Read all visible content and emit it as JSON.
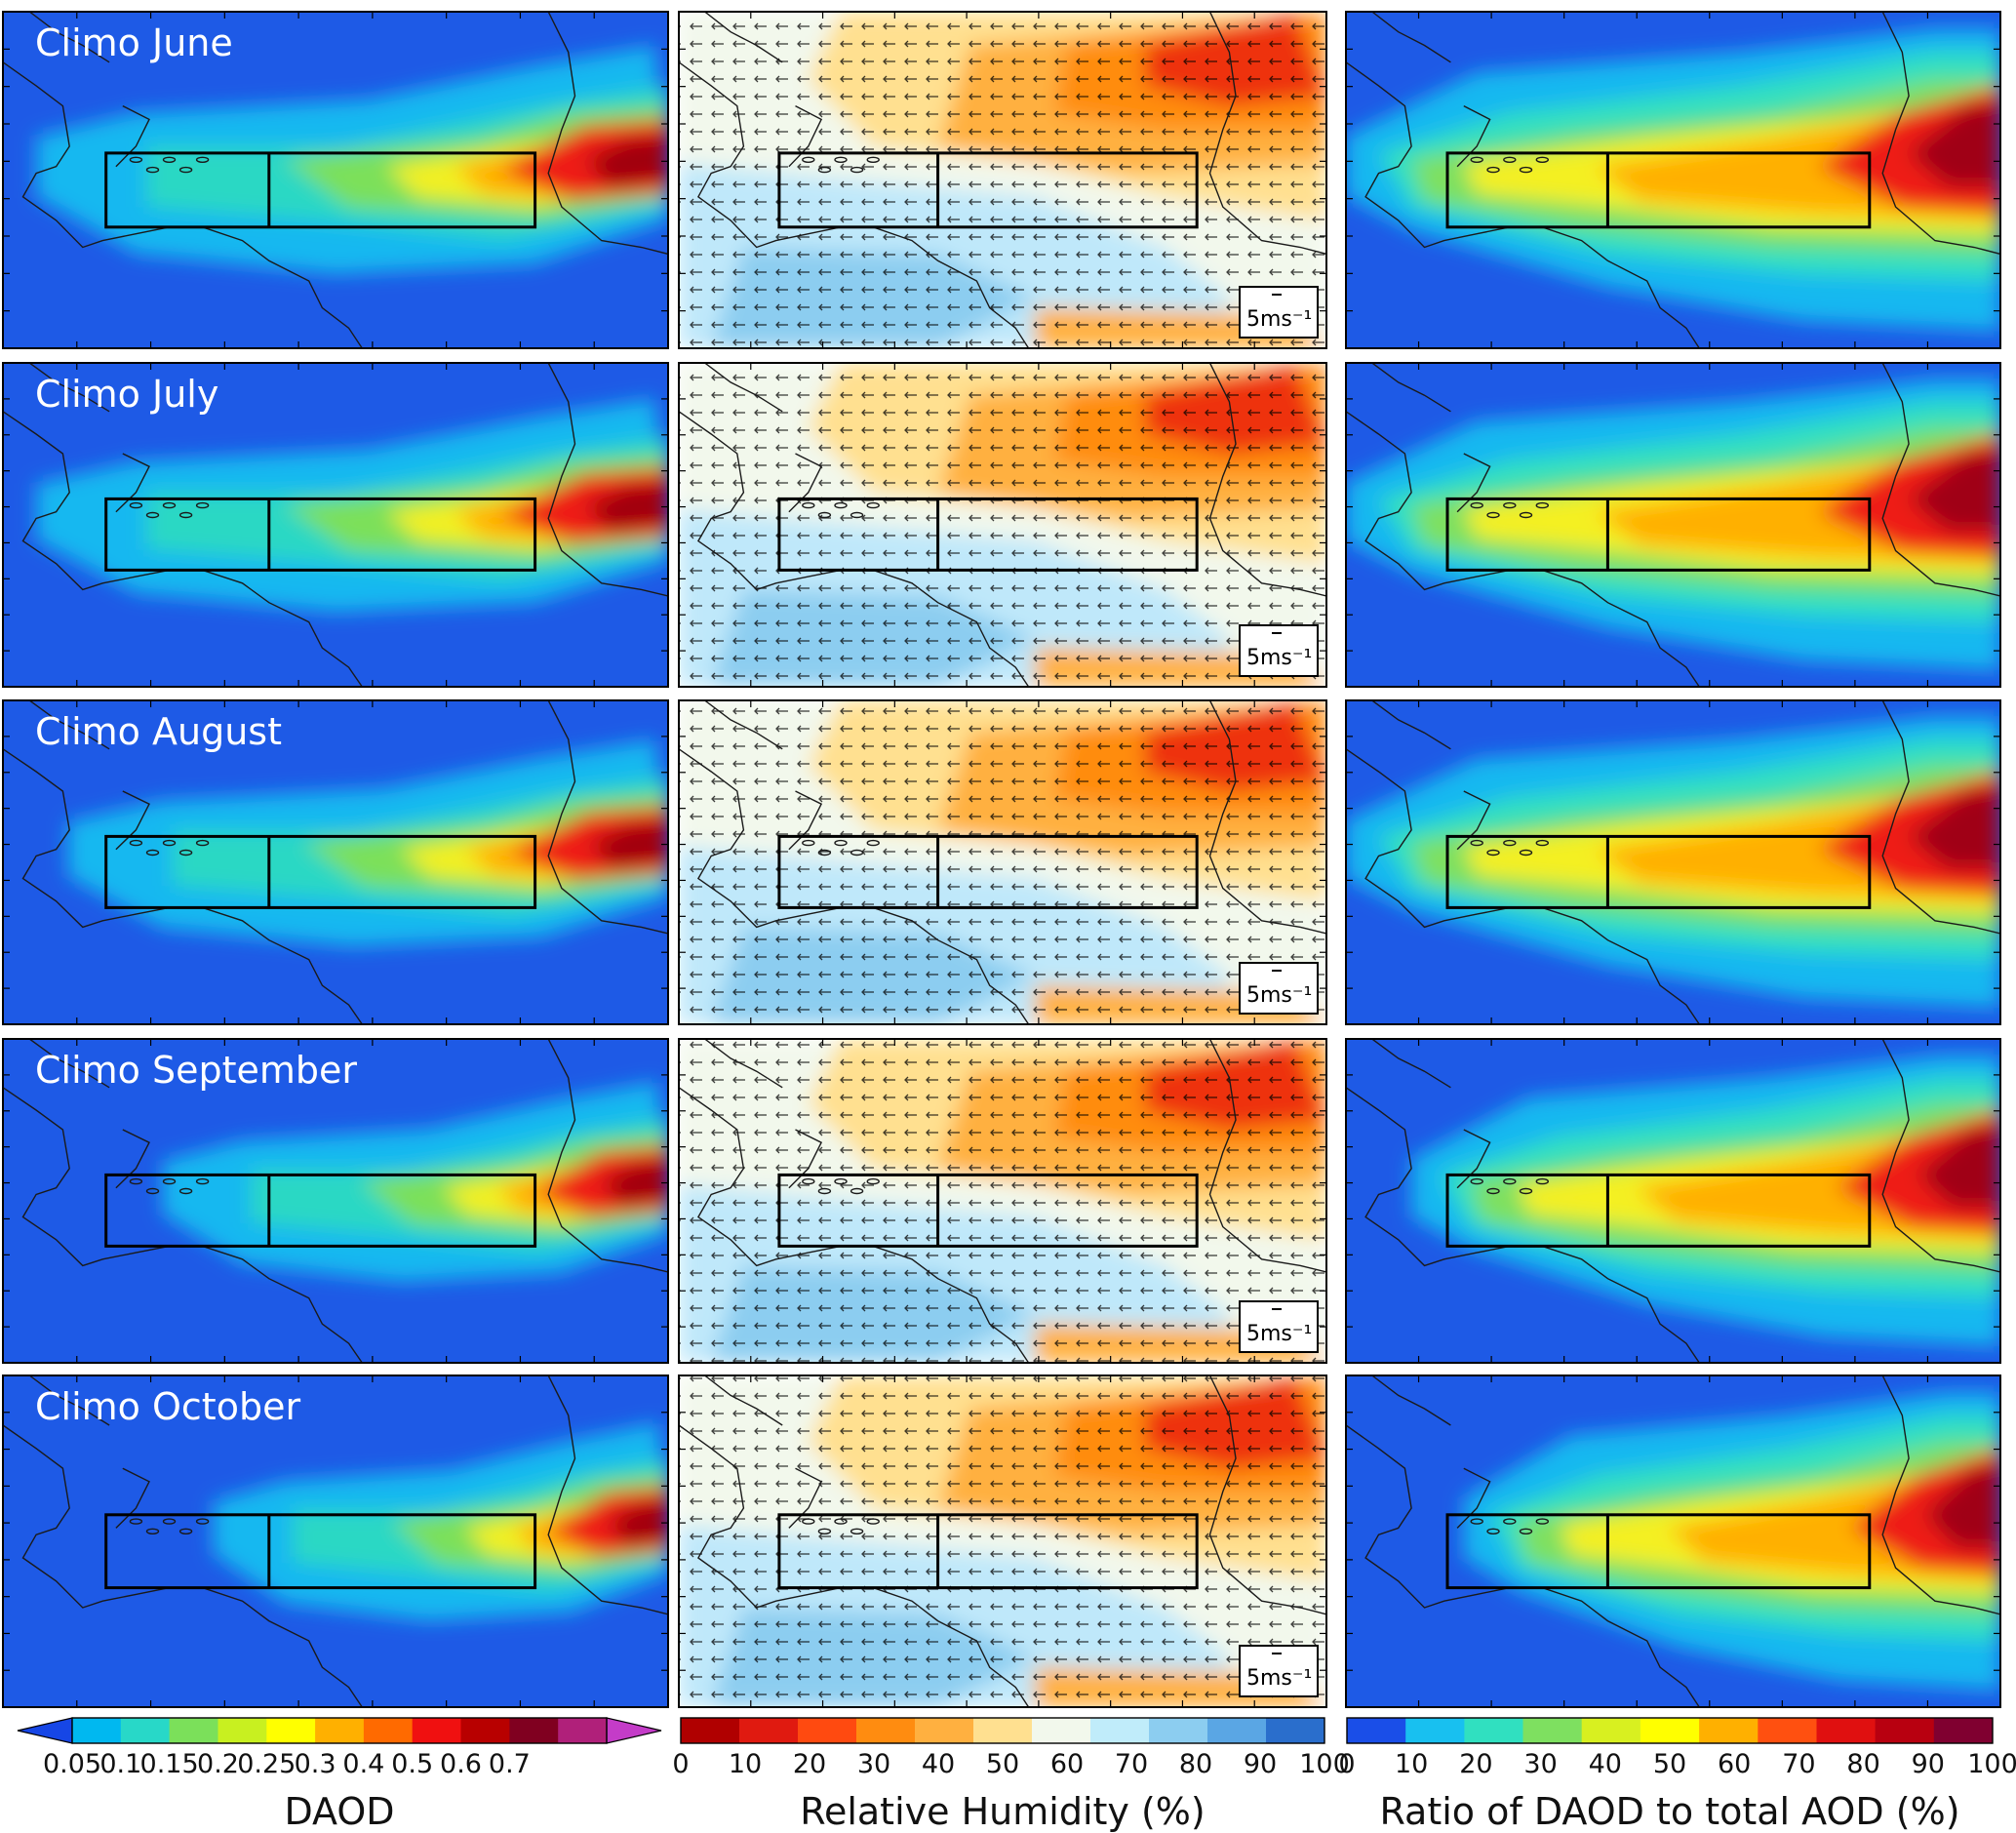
{
  "panels": {
    "row_labels": [
      "Climo June",
      "Climo July",
      "Climo August",
      "Climo September",
      "Climo October"
    ],
    "wind_key_label": "5ms⁻¹",
    "columns": [
      "DAOD",
      "Relative Humidity",
      "Ratio of DAOD to total AOD"
    ]
  },
  "colorbars": {
    "daod": {
      "title": "DAOD",
      "ticks": [
        "0.05",
        "0.1",
        "0.15",
        "0.2",
        "0.25",
        "0.3",
        "0.4",
        "0.5",
        "0.6",
        "0.7"
      ],
      "colors": [
        "#00b8f0",
        "#28d8c8",
        "#7be05a",
        "#c8f020",
        "#ffff00",
        "#ffb000",
        "#ff6a00",
        "#f01010",
        "#b80000",
        "#800020",
        "#b0207a"
      ],
      "extend_colors": {
        "low": "#1646e6",
        "high": "#c43cc8"
      }
    },
    "rh": {
      "title": "Relative Humidity (%)",
      "ticks": [
        "0",
        "10",
        "20",
        "30",
        "40",
        "50",
        "60",
        "70",
        "80",
        "90",
        "100"
      ],
      "colors": [
        "#b00000",
        "#e01a10",
        "#ff4a10",
        "#ff8c10",
        "#ffb040",
        "#ffe090",
        "#f2f8ec",
        "#c0ecfa",
        "#8ccdf0",
        "#5aa6e4",
        "#2a6ecc"
      ]
    },
    "ratio": {
      "title": "Ratio of DAOD to total AOD (%)",
      "ticks": [
        "0",
        "10",
        "20",
        "30",
        "40",
        "50",
        "60",
        "70",
        "80",
        "90",
        "100"
      ],
      "colors": [
        "#1a4ee8",
        "#18c0f0",
        "#30e0c0",
        "#7ee060",
        "#d8f020",
        "#ffff00",
        "#ffb000",
        "#ff5010",
        "#e01010",
        "#b80010",
        "#800030"
      ]
    }
  },
  "colors": {
    "ocean_blue": "#1e5ae6",
    "box_outline": "#000000",
    "coast": "#1a1a1a"
  }
}
